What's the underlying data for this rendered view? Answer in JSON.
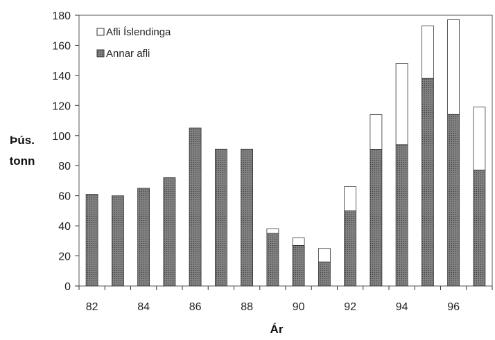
{
  "chart_data": {
    "type": "bar",
    "stacked": true,
    "x": [
      82,
      83,
      84,
      85,
      86,
      87,
      88,
      89,
      90,
      91,
      92,
      93,
      94,
      95,
      96,
      97
    ],
    "x_tick_labels": [
      "82",
      "84",
      "86",
      "88",
      "90",
      "92",
      "94",
      "96"
    ],
    "series": [
      {
        "name": "Annar afli",
        "values": [
          61,
          60,
          65,
          72,
          105,
          91,
          91,
          35,
          27,
          16,
          50,
          91,
          94,
          138,
          114,
          77
        ],
        "color": "#6a6a6a"
      },
      {
        "name": "Afli Íslendinga",
        "values": [
          0,
          0,
          0,
          0,
          0,
          0,
          0,
          3,
          5,
          9,
          16,
          23,
          54,
          35,
          63,
          42
        ],
        "color": "#ffffff"
      }
    ],
    "ylim": [
      0,
      180
    ],
    "yticks": [
      0,
      20,
      40,
      60,
      80,
      100,
      120,
      140,
      160,
      180
    ],
    "ylabel": [
      "Þús.",
      "tonn"
    ],
    "xlabel": "Ár",
    "legend_position": "top-left",
    "grid": false
  }
}
